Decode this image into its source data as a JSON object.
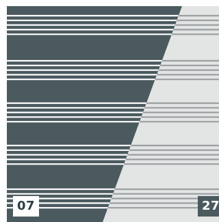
{
  "colors": {
    "dark_panel": "#4b5a5f",
    "light_panel": "#e3e4e4",
    "stripe_on_dark": "#ffffff",
    "stripe_on_light": "#9aa0a2",
    "badge_left_bg": "#ffffff",
    "badge_left_text": "#2e3e44",
    "badge_right_bg": "#4b5a5f",
    "badge_right_text": "#ffffff"
  },
  "badges": {
    "left": "07",
    "right": "27"
  },
  "stripe_groups": 5,
  "lines_per_group": 5
}
